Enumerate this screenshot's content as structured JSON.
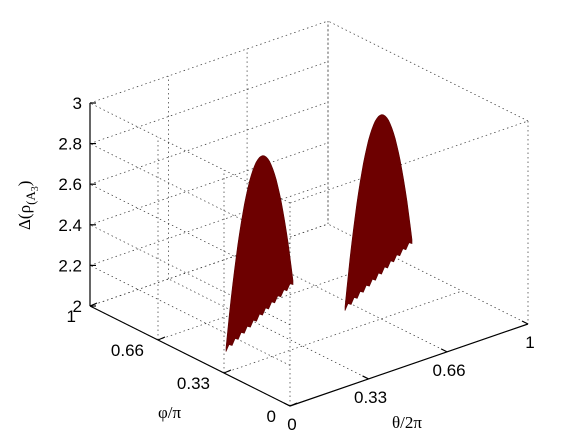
{
  "chart_data": {
    "type": "surface",
    "title": "",
    "xlabel": "θ/2π",
    "ylabel": "φ/π",
    "zlabel": "Δ(ρ(A3))",
    "zlabel_parts": {
      "pre": "Δ(ρ",
      "sub": "(A",
      "subsub": "3",
      "post": ")"
    },
    "x_ticks": [
      "0",
      "0.33",
      "0.66",
      "1"
    ],
    "y_ticks": [
      "0",
      "0.33",
      "0.66",
      "1"
    ],
    "z_ticks": [
      "2",
      "2.2",
      "2.4",
      "2.6",
      "2.8",
      "3"
    ],
    "xlim": [
      0,
      1
    ],
    "ylim": [
      0,
      1
    ],
    "zlim": [
      2,
      3
    ],
    "grid": true,
    "color": "#6d0000",
    "series": [
      {
        "peak_theta": 0.25,
        "peak_phi": 0.5,
        "peak_value": 2.75
      },
      {
        "peak_theta": 0.75,
        "peak_phi": 0.5,
        "peak_value": 2.75
      }
    ]
  }
}
